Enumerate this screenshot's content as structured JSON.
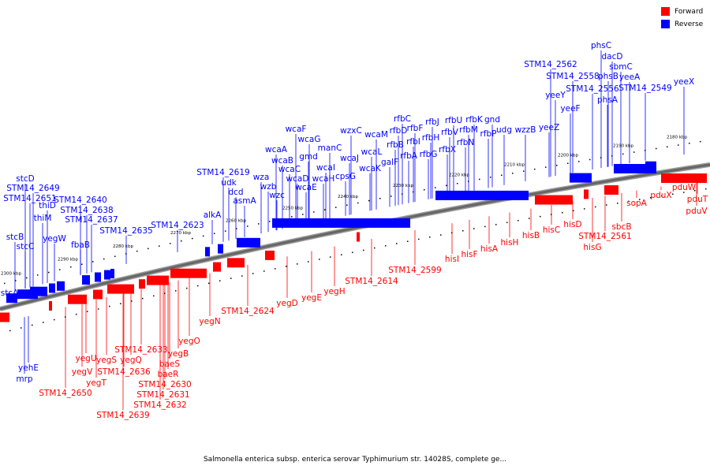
{
  "legend": {
    "forward_label": "Forward",
    "reverse_label": "Reverse",
    "forward_color": "#ff0000",
    "reverse_color": "#0000ff"
  },
  "caption": "Salmonella enterica subsp. enterica serovar Typhimurium str. 14028S, complete ge...",
  "ticks": [
    "2300 kbp",
    "2290 kbp",
    "2280 kbp",
    "2270 kbp",
    "2260 kbp",
    "2250 kbp",
    "2240 kbp",
    "2230 kbp",
    "2220 kbp",
    "2210 kbp",
    "2200 kbp",
    "2190 kbp",
    "2180 kbp"
  ],
  "reverse_labels": [
    "stcA",
    "stcB",
    "stcC",
    "STM14_2651",
    "thiD",
    "thiM",
    "yegW",
    "STM14_2649",
    "stcD",
    "fbaB",
    "STM14_2637",
    "STM14_2638",
    "STM14_2640",
    "STM14_2635",
    "STM14_2623",
    "alkA",
    "asmA",
    "dcd",
    "udk",
    "STM14_2619",
    "wza",
    "wzb",
    "wzc",
    "wcaA",
    "wcaB",
    "wcaC",
    "wcaD",
    "wcaE",
    "gmd",
    "wcaF",
    "wcaG",
    "wcaH",
    "wcaI",
    "manC",
    "cpsG",
    "wcaJ",
    "wzxC",
    "wcaK",
    "wcaL",
    "wcaM",
    "galF",
    "rfbB",
    "rfbD",
    "rfbA",
    "rfbC",
    "rfbI",
    "rfbF",
    "rfbG",
    "rfbH",
    "rfbJ",
    "rfbX",
    "rfbV",
    "rfbU",
    "rfbN",
    "rfbM",
    "rfbK",
    "rfbP",
    "gnd",
    "udg",
    "wzzB",
    "yeeZ",
    "yeeY",
    "yeeF",
    "STM14_2562",
    "STM14_2558",
    "STM14_2556",
    "phsA",
    "phsB",
    "phsC",
    "dacD",
    "sbmC",
    "yeeA",
    "STM14_2549",
    "yeeX",
    "yehE",
    "mrp"
  ],
  "forward_labels": [
    "STM14_2650",
    "yegV",
    "yegU",
    "yegT",
    "yegS",
    "STM14_2639",
    "STM14_2636",
    "yegQ",
    "STM14_2633",
    "STM14_2630",
    "STM14_2631",
    "STM14_2632",
    "baeS",
    "baeR",
    "yegB",
    "yegO",
    "yegN",
    "STM14_2624",
    "yegD",
    "yegE",
    "yegH",
    "STM14_2614",
    "STM14_2599",
    "hisI",
    "hisF",
    "hisA",
    "hisH",
    "hisB",
    "hisC",
    "hisD",
    "STM14_2561",
    "hisG",
    "sbcB",
    "sopA",
    "pduX",
    "pduW",
    "pduT",
    "pduV"
  ]
}
